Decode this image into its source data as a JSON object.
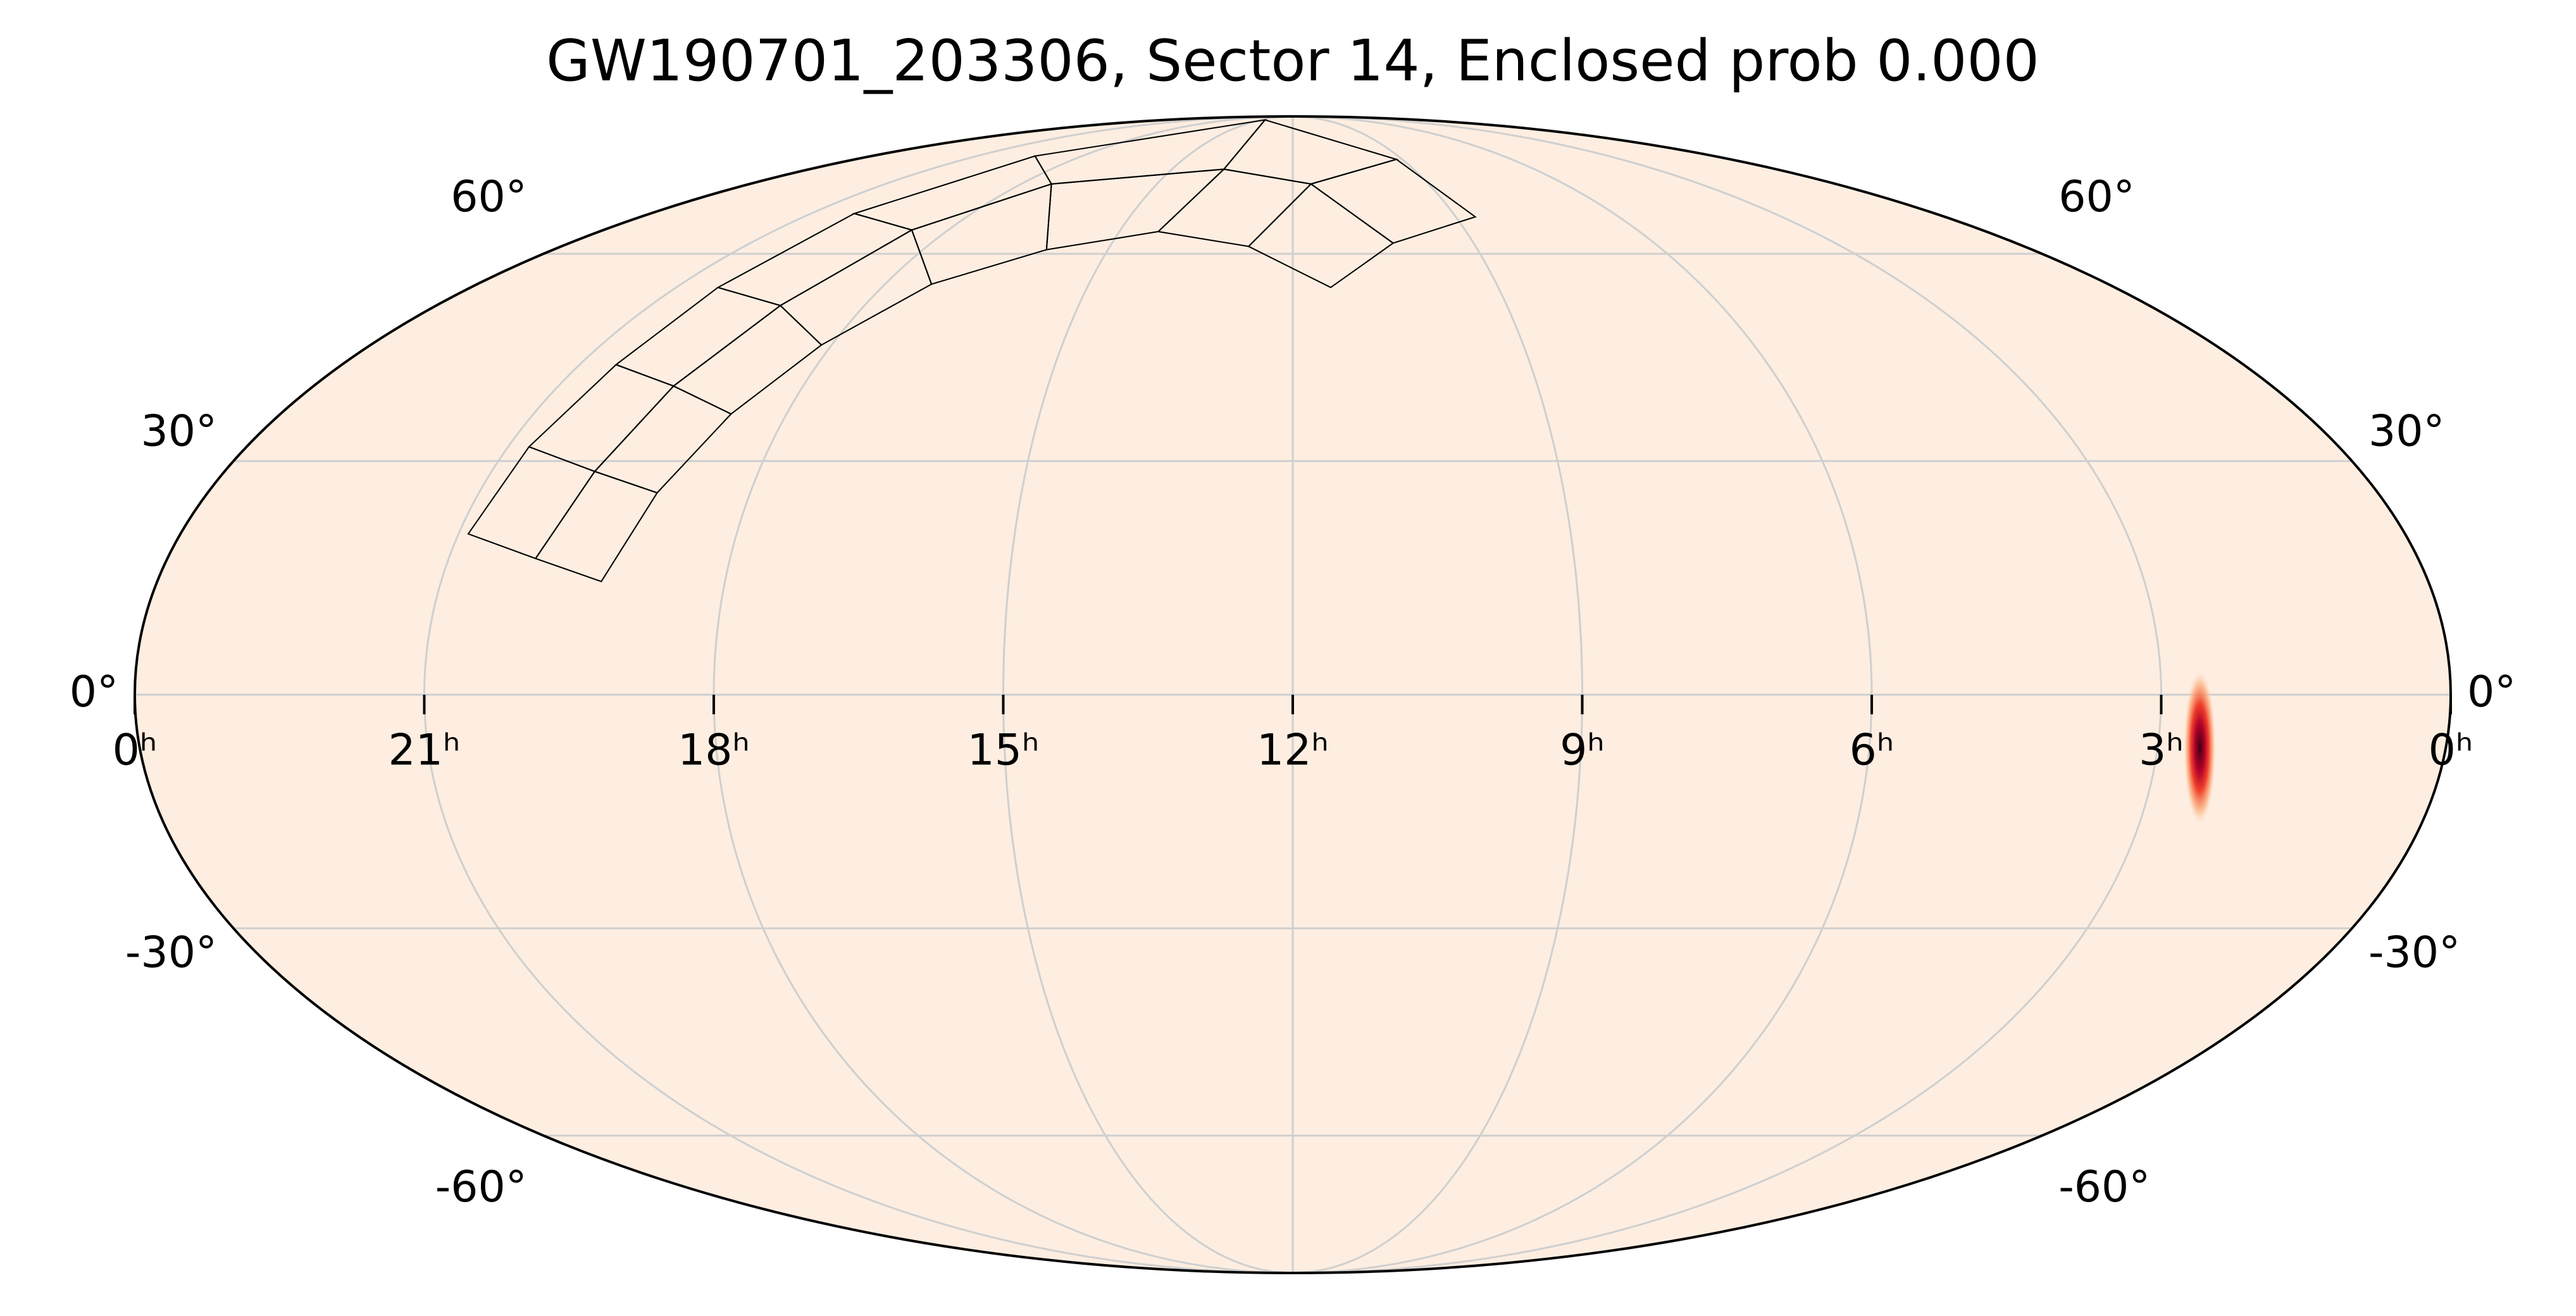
{
  "chart_data": {
    "type": "skymap",
    "projection": "mollweide",
    "title": "GW190701_203306, Sector 14, Enclosed prob 0.000",
    "xlim": [
      24,
      0
    ],
    "xticks": [
      {
        "value": 24,
        "label": "0ʰ"
      },
      {
        "value": 21,
        "label": "21ʰ"
      },
      {
        "value": 18,
        "label": "18ʰ"
      },
      {
        "value": 15,
        "label": "15ʰ"
      },
      {
        "value": 12,
        "label": "12ʰ"
      },
      {
        "value": 9,
        "label": "9ʰ"
      },
      {
        "value": 6,
        "label": "6ʰ"
      },
      {
        "value": 3,
        "label": "3ʰ"
      },
      {
        "value": 0,
        "label": "0ʰ"
      }
    ],
    "ylim": [
      -90,
      90
    ],
    "yticks": [
      {
        "value": -60,
        "label": "-60°"
      },
      {
        "value": -30,
        "label": "-30°"
      },
      {
        "value": 0,
        "label": "0°"
      },
      {
        "value": 30,
        "label": "30°"
      },
      {
        "value": 60,
        "label": "60°"
      }
    ],
    "grid": true,
    "background": "#fdeee1"
  }
}
